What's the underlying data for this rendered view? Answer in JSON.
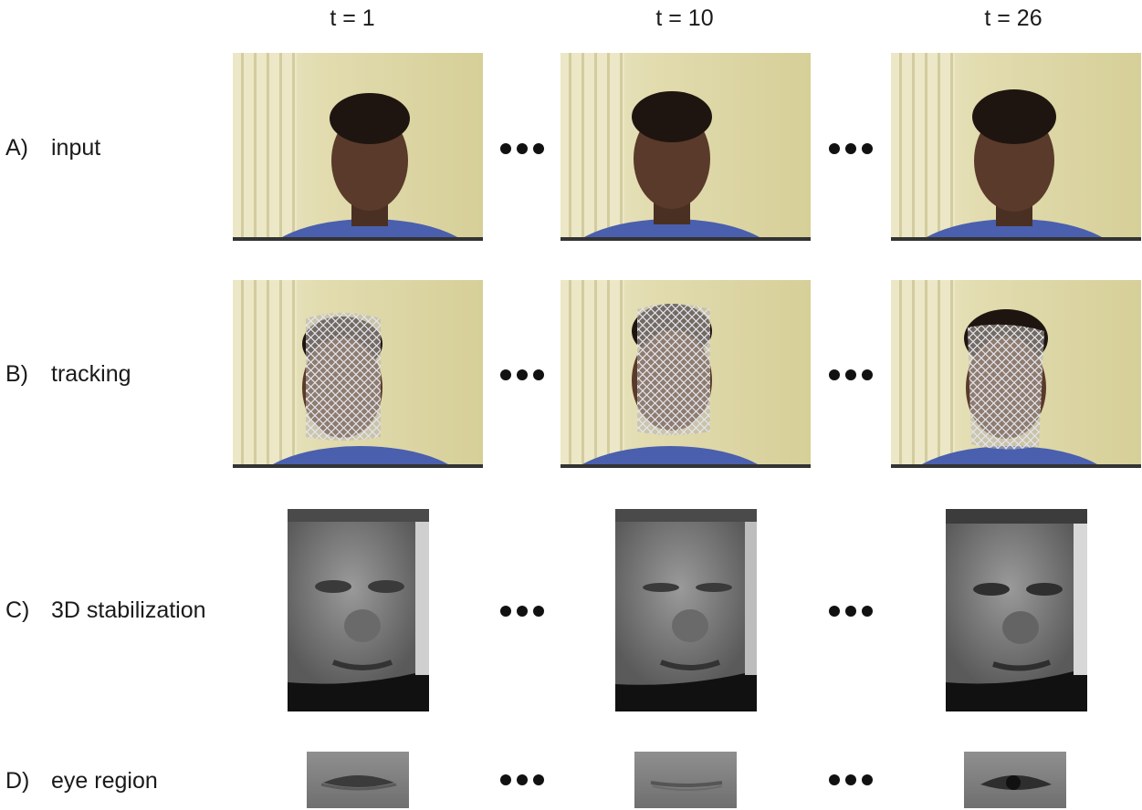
{
  "columns": [
    {
      "label": "t = 1"
    },
    {
      "label": "t = 10"
    },
    {
      "label": "t = 26"
    }
  ],
  "rows": [
    {
      "letter": "A)",
      "label": "input"
    },
    {
      "letter": "B)",
      "label": "tracking"
    },
    {
      "letter": "C)",
      "label": "3D stabilization"
    },
    {
      "letter": "D)",
      "label": "eye region"
    }
  ],
  "ellipsis_icon": "three-dots-ellipsis-icon",
  "colors": {
    "background": "#ffffff",
    "wall": "#d9d3a2",
    "curtain": "#ece6c2",
    "skin": "#5a3a2a",
    "hair": "#1f1510",
    "shirt": "#4a5fae",
    "mesh": "#d8d8e0",
    "stabilized_bg": "#111111",
    "gray_face": "#8a8a8a"
  }
}
